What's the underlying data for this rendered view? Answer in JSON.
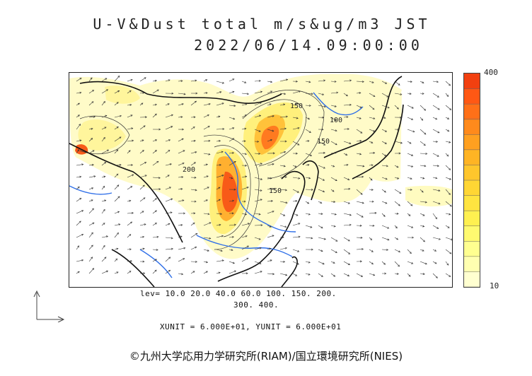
{
  "title": {
    "line1": "U-V&Dust total m/s&ug/m3 JST",
    "line2": "2022/06/14.09:00:00"
  },
  "colorbar": {
    "max_label": "400",
    "min_label": "10",
    "colors": [
      "#ffffd0",
      "#ffffb0",
      "#ffff90",
      "#fffa70",
      "#fff050",
      "#ffe440",
      "#ffd634",
      "#ffc62c",
      "#ffb424",
      "#ffa020",
      "#ff8a1c",
      "#ff7018",
      "#ff5814",
      "#f24010"
    ]
  },
  "levels": {
    "line1": "lev= 10.0 20.0 40.0 60.0 100. 150. 200.",
    "line2": "300. 400."
  },
  "units_text": "XUNIT = 6.000E+01, YUNIT = 6.000E+01",
  "contour_labels": [
    "150",
    "150",
    "100",
    "150",
    "200"
  ],
  "credit": "©九州大学応用力学研究所(RIAM)/国立環境研究所(NIES)",
  "colors": {
    "coast": "#111111",
    "river": "#2f6fe8",
    "dust_low": "#fffbc4",
    "dust_high": "#e8401a"
  }
}
